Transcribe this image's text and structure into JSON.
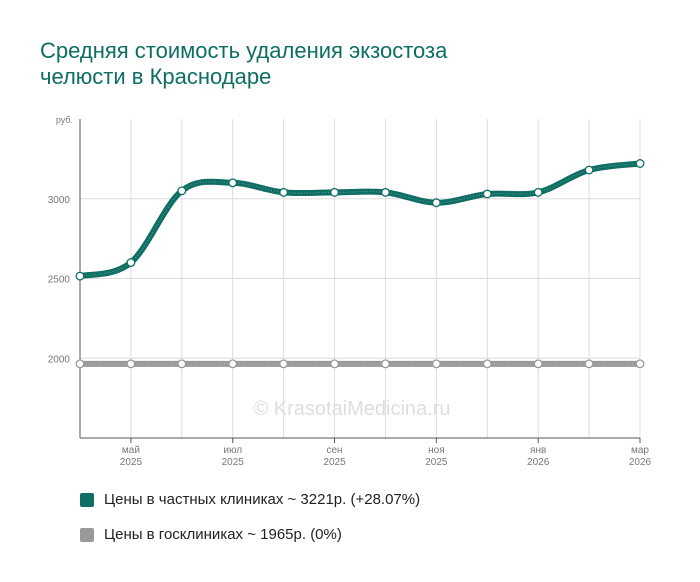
{
  "title": {
    "line1": "Средняя стоимость удаления экзостоза",
    "line2": "челюсти в Краснодаре"
  },
  "watermark": "© KrasotaiMedicina.ru",
  "colors": {
    "private": "#0e6e63",
    "public": "#999999",
    "title": "#0e6e63"
  },
  "chart_data": {
    "type": "line",
    "title": "Средняя стоимость удаления экзостоза челюсти в Краснодаре",
    "ylabel": "руб.",
    "ylim": [
      1500,
      3500
    ],
    "yticks": [
      2000,
      2500,
      3000
    ],
    "grid": true,
    "x": [
      "2025-04",
      "2025-05",
      "2025-06",
      "2025-07",
      "2025-08",
      "2025-09",
      "2025-10",
      "2025-11",
      "2025-12",
      "2026-01",
      "2026-02",
      "2026-03"
    ],
    "xtick_labels": [
      {
        "index": 1,
        "month": "май",
        "year": "2025"
      },
      {
        "index": 3,
        "month": "июл",
        "year": "2025"
      },
      {
        "index": 5,
        "month": "сен",
        "year": "2025"
      },
      {
        "index": 7,
        "month": "ноя",
        "year": "2025"
      },
      {
        "index": 9,
        "month": "янв",
        "year": "2026"
      },
      {
        "index": 11,
        "month": "мар",
        "year": "2026"
      }
    ],
    "series": [
      {
        "name": "Цены в частных клиниках",
        "values": [
          2515,
          2600,
          3050,
          3100,
          3040,
          3040,
          3040,
          2975,
          3030,
          3040,
          3180,
          3221
        ]
      },
      {
        "name": "Цены в госклиниках",
        "values": [
          1965,
          1965,
          1965,
          1965,
          1965,
          1965,
          1965,
          1965,
          1965,
          1965,
          1965,
          1965
        ]
      }
    ],
    "legend": [
      {
        "label": "Цены в частных клиниках ~ 3221р. (+28.07%)"
      },
      {
        "label": "Цены в госклиниках ~ 1965р. (0%)"
      }
    ]
  }
}
